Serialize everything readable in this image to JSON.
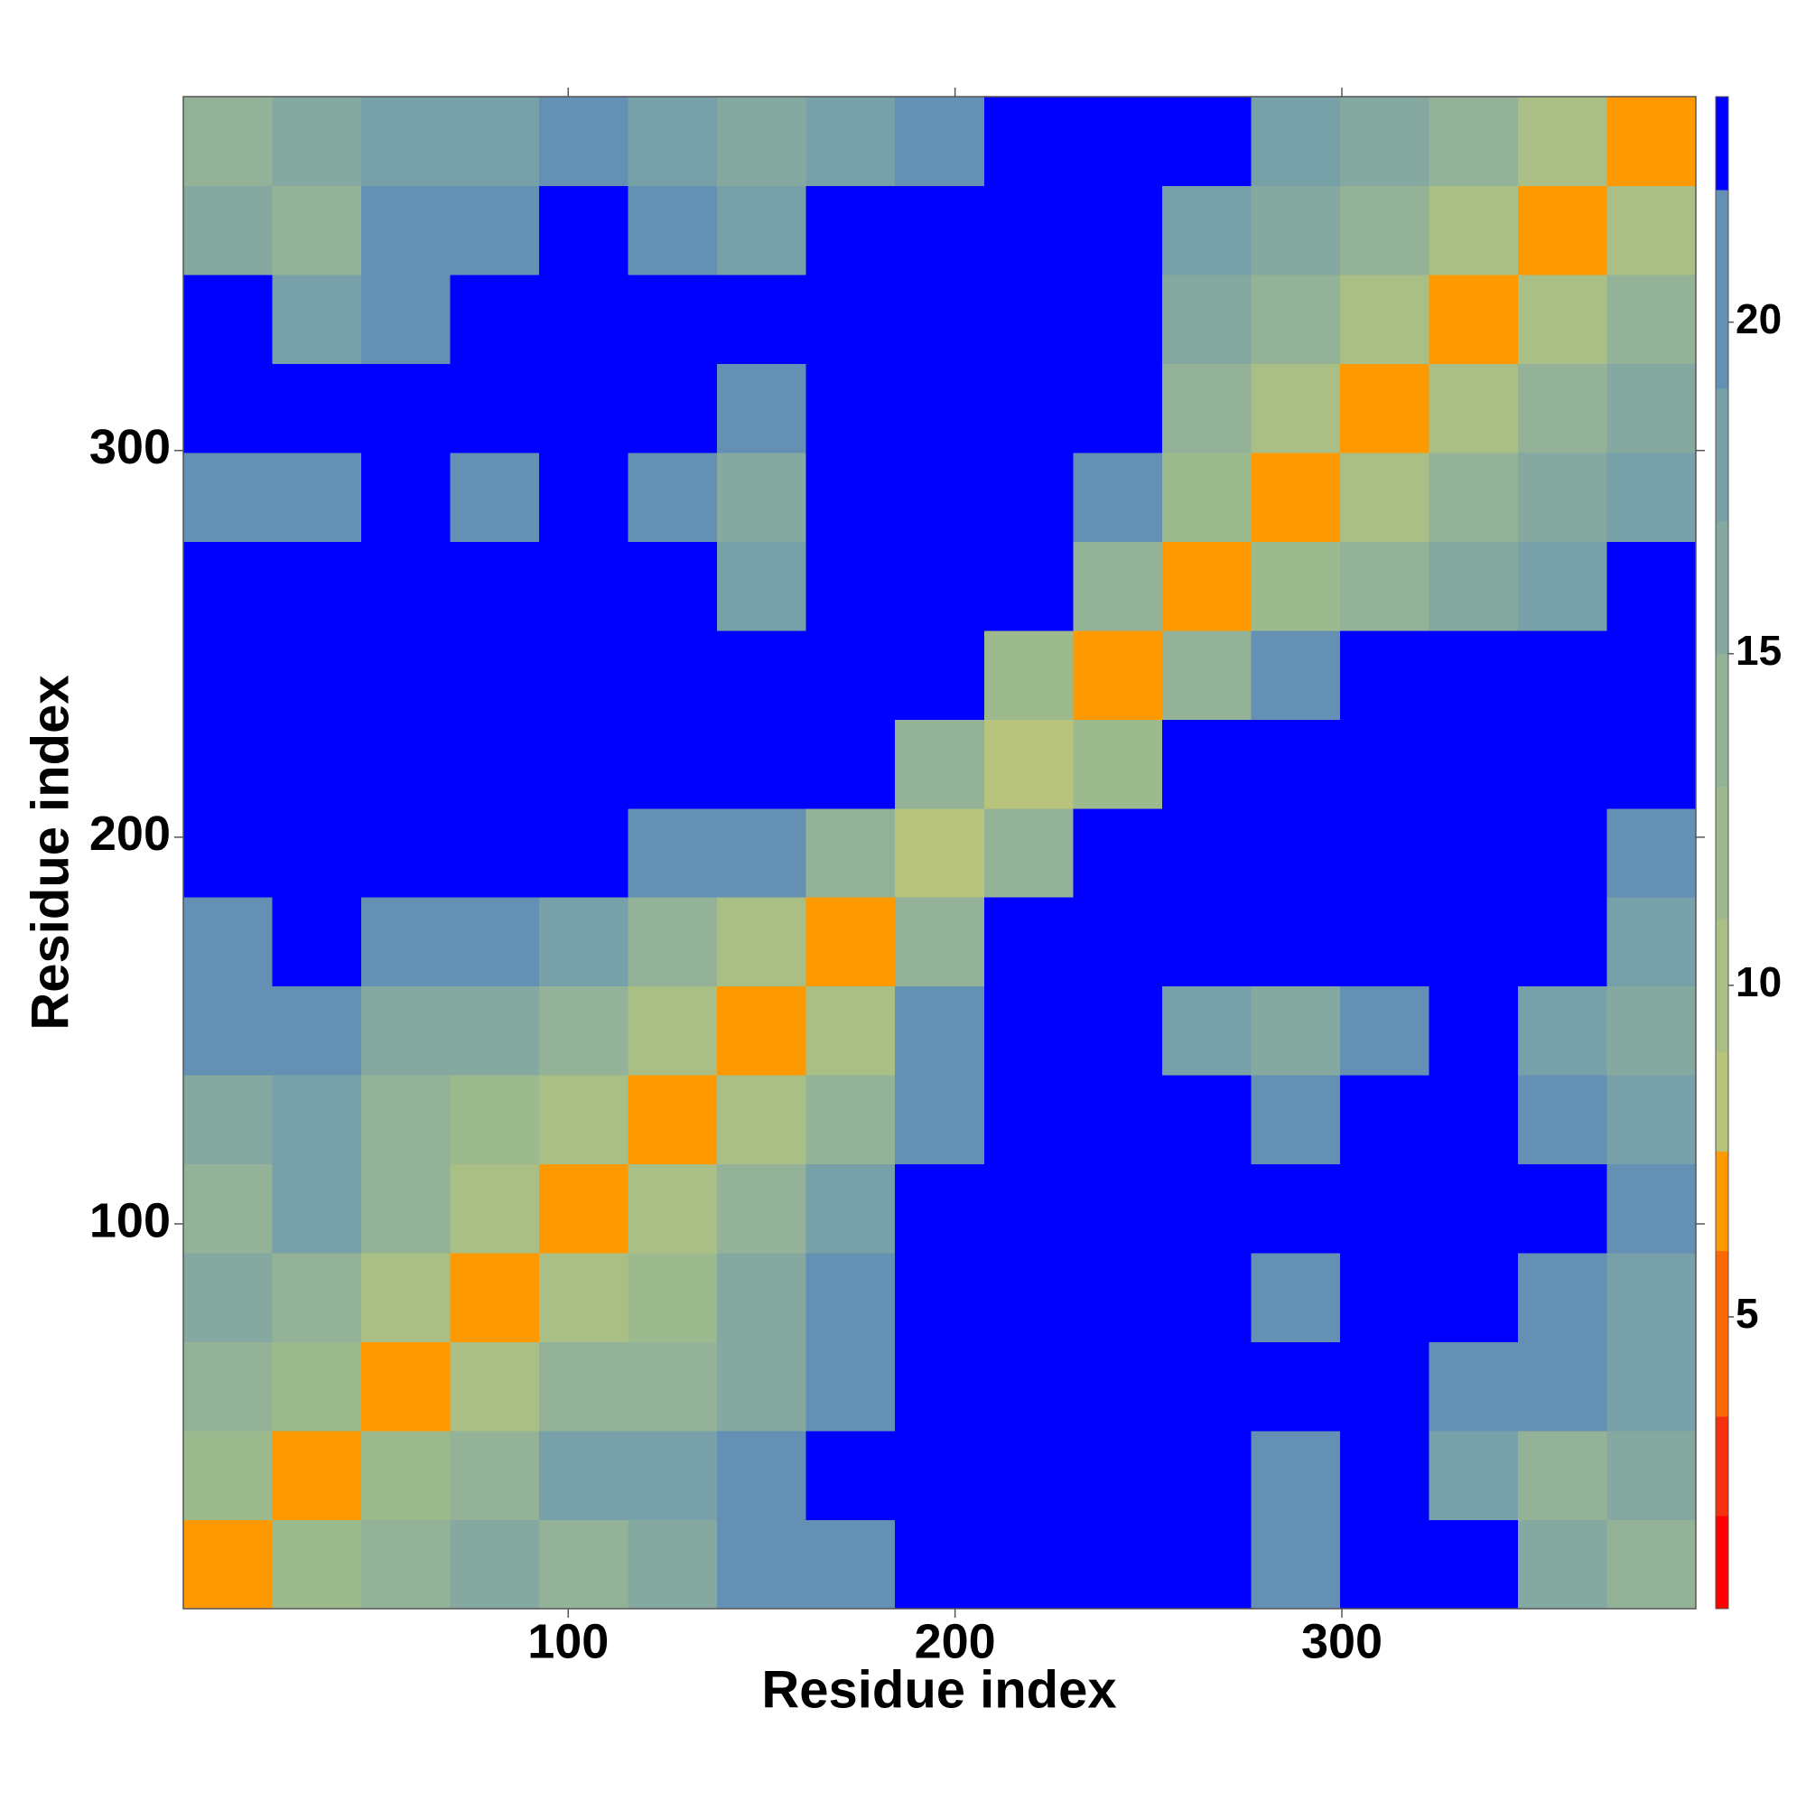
{
  "chart_data": {
    "type": "heatmap",
    "x_label": "Residue index",
    "y_label": "Residue index",
    "xlim": [
      0.5,
      391.5
    ],
    "ylim": [
      0.5,
      391.5
    ],
    "xticks": [
      100,
      200,
      300
    ],
    "yticks": [
      100,
      200,
      300
    ],
    "x_bins": [
      0.5,
      23.5,
      46.5,
      69.5,
      92.5,
      115.5,
      138.5,
      161.5,
      184.5,
      207.5,
      230.5,
      253.5,
      276.5,
      299.5,
      322.5,
      345.5,
      368.5,
      391.5
    ],
    "y_bins": [
      0.5,
      23.5,
      46.5,
      69.5,
      92.5,
      115.5,
      138.5,
      161.5,
      184.5,
      207.5,
      230.5,
      253.5,
      276.5,
      299.5,
      322.5,
      345.5,
      368.5,
      391.5
    ],
    "z": [
      [
        6,
        12,
        13,
        16,
        14,
        16,
        19,
        20,
        23,
        23,
        23,
        23,
        20,
        23,
        22,
        15,
        14
      ],
      [
        12,
        6,
        12,
        14,
        18,
        18,
        21,
        22,
        23,
        23,
        23,
        23,
        21,
        23,
        17,
        14,
        16
      ],
      [
        13,
        12,
        6,
        10,
        14,
        14,
        16,
        20,
        23,
        23,
        23,
        23,
        23,
        23,
        19,
        19,
        18
      ],
      [
        16,
        14,
        10,
        6,
        10,
        12,
        16,
        19,
        23,
        23,
        23,
        23,
        21,
        23,
        23,
        20,
        18
      ],
      [
        14,
        18,
        14,
        10,
        6,
        10,
        14,
        17,
        23,
        23,
        23,
        23,
        23,
        23,
        23,
        23,
        19
      ],
      [
        16,
        18,
        14,
        12,
        10,
        6,
        10,
        13,
        21,
        23,
        23,
        23,
        20,
        23,
        23,
        20,
        17
      ],
      [
        19,
        21,
        16,
        16,
        14,
        10,
        6,
        10,
        20,
        23,
        23,
        17,
        16,
        20,
        23,
        17,
        15
      ],
      [
        20,
        22,
        20,
        19,
        17,
        13,
        10,
        6,
        13,
        23,
        23,
        22,
        22,
        23,
        23,
        22,
        17
      ],
      [
        23,
        23,
        23,
        23,
        23,
        21,
        20,
        13,
        8,
        13,
        23,
        23,
        23,
        23,
        23,
        23,
        21
      ],
      [
        23,
        23,
        23,
        23,
        23,
        23,
        23,
        23,
        13,
        8,
        12,
        23,
        23,
        23,
        23,
        23,
        23
      ],
      [
        23,
        23,
        23,
        23,
        23,
        23,
        23,
        23,
        23,
        12,
        7,
        13,
        21,
        23,
        23,
        23,
        23
      ],
      [
        23,
        23,
        23,
        23,
        23,
        23,
        17,
        22,
        23,
        23,
        13,
        6,
        12,
        14,
        16,
        18,
        22
      ],
      [
        20,
        21,
        23,
        21,
        23,
        20,
        16,
        22,
        23,
        23,
        21,
        12,
        6,
        10,
        14,
        16,
        17
      ],
      [
        23,
        23,
        23,
        23,
        23,
        23,
        20,
        23,
        23,
        23,
        23,
        14,
        10,
        6,
        10,
        14,
        16
      ],
      [
        22,
        17,
        19,
        23,
        23,
        23,
        23,
        23,
        23,
        23,
        23,
        16,
        14,
        10,
        6,
        10,
        13
      ],
      [
        15,
        14,
        19,
        20,
        23,
        20,
        17,
        22,
        23,
        23,
        23,
        18,
        16,
        14,
        10,
        6,
        10
      ],
      [
        14,
        16,
        18,
        18,
        19,
        17,
        15,
        17,
        21,
        23,
        23,
        22,
        17,
        16,
        13,
        10,
        6
      ]
    ],
    "colorbar": {
      "clim": [
        0.6,
        23.4
      ],
      "ticks": [
        5,
        10,
        15,
        20
      ],
      "boundaries": [
        0.6,
        2,
        3.5,
        6,
        7.5,
        9,
        11,
        13,
        15,
        17,
        19,
        22,
        23.4
      ],
      "colors": [
        "#ff0000",
        "#f5300f",
        "#ff6a00",
        "#ff9900",
        "#b8c47c",
        "#a9bf86",
        "#9dba8e",
        "#93b297",
        "#85a8a0",
        "#77a0a8",
        "#6490b4",
        "#0000ff"
      ]
    }
  }
}
